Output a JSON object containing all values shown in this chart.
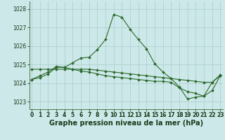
{
  "line1_x": [
    0,
    1,
    2,
    3,
    4,
    5,
    6,
    7,
    8,
    9,
    10,
    11,
    12,
    13,
    14,
    15,
    16,
    17,
    18,
    19,
    20,
    21,
    22,
    23
  ],
  "line1_y": [
    1024.2,
    1024.4,
    1024.6,
    1024.9,
    1024.85,
    1025.1,
    1025.35,
    1025.4,
    1025.8,
    1026.35,
    1027.7,
    1027.55,
    1026.9,
    1026.35,
    1025.85,
    1025.05,
    1024.6,
    1024.25,
    1023.8,
    1023.15,
    1023.25,
    1023.3,
    1024.05,
    1024.45
  ],
  "line2_x": [
    0,
    1,
    2,
    3,
    4,
    5,
    6,
    7,
    8,
    9,
    10,
    11,
    12,
    13,
    14,
    15,
    16,
    17,
    18,
    19,
    20,
    21,
    22,
    23
  ],
  "line2_y": [
    1024.75,
    1024.75,
    1024.75,
    1024.75,
    1024.75,
    1024.75,
    1024.75,
    1024.75,
    1024.7,
    1024.65,
    1024.6,
    1024.55,
    1024.5,
    1024.45,
    1024.4,
    1024.35,
    1024.3,
    1024.25,
    1024.2,
    1024.15,
    1024.1,
    1024.05,
    1024.05,
    1024.4
  ],
  "line3_x": [
    0,
    1,
    2,
    3,
    4,
    5,
    6,
    7,
    8,
    9,
    10,
    11,
    12,
    13,
    14,
    15,
    16,
    17,
    18,
    19,
    20,
    21,
    22,
    23
  ],
  "line3_y": [
    1024.2,
    1024.3,
    1024.5,
    1024.85,
    1024.85,
    1024.75,
    1024.65,
    1024.6,
    1024.5,
    1024.4,
    1024.35,
    1024.3,
    1024.25,
    1024.2,
    1024.15,
    1024.1,
    1024.1,
    1024.05,
    1023.75,
    1023.55,
    1023.45,
    1023.3,
    1023.6,
    1024.4
  ],
  "line_color": "#2d6a2d",
  "bg_color": "#cce8e8",
  "grid_color": "#aacccc",
  "ylabel_ticks": [
    1023,
    1024,
    1025,
    1026,
    1027,
    1028
  ],
  "ylim": [
    1022.6,
    1028.4
  ],
  "xlim": [
    -0.3,
    23.3
  ],
  "xlabel": "Graphe pression niveau de la mer (hPa)",
  "xlabel_fontsize": 7,
  "tick_fontsize": 5.5,
  "marker": "D",
  "marker_size": 2.0,
  "linewidth": 0.8
}
